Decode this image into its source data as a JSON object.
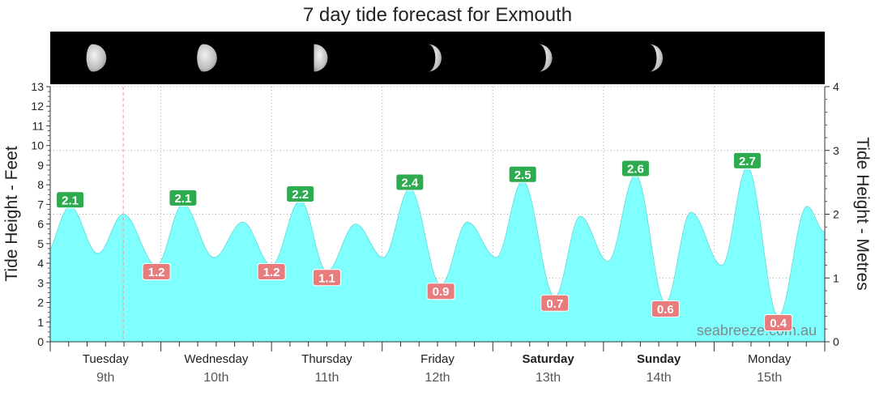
{
  "chart_data": {
    "type": "area",
    "title": "7 day tide forecast for Exmouth",
    "ylabel": "Tide Height - Feet",
    "y2label": "Tide Height - Metres",
    "watermark": "seabreeze.com.au",
    "ylim_feet": [
      0,
      13
    ],
    "ylim_metres": [
      0,
      4
    ],
    "yticks_feet": [
      0,
      1,
      2,
      3,
      4,
      5,
      6,
      7,
      8,
      9,
      10,
      11,
      12,
      13
    ],
    "yticks_metres": [
      0,
      1,
      2,
      3,
      4
    ],
    "grid": true,
    "days": [
      {
        "name": "Tuesday",
        "date": "9th",
        "bold": false
      },
      {
        "name": "Wednesday",
        "date": "10th",
        "bold": false
      },
      {
        "name": "Thursday",
        "date": "11th",
        "bold": false
      },
      {
        "name": "Friday",
        "date": "12th",
        "bold": false
      },
      {
        "name": "Saturday",
        "date": "13th",
        "bold": true
      },
      {
        "name": "Sunday",
        "date": "14th",
        "bold": true
      },
      {
        "name": "Monday",
        "date": "15th",
        "bold": false
      }
    ],
    "moon_phases": [
      "waning-gibbous",
      "waning-gibbous",
      "last-quarter",
      "waning-crescent",
      "waning-crescent",
      "waning-crescent"
    ],
    "x_unit": "day index from Tuesday 9th 00:00",
    "tide_extremes": [
      {
        "t": -0.06,
        "ft": 4.3,
        "type": "low"
      },
      {
        "t": 0.18,
        "ft": 6.9,
        "type": "high"
      },
      {
        "t": 0.43,
        "ft": 4.5,
        "type": "low"
      },
      {
        "t": 0.66,
        "ft": 6.5,
        "type": "high"
      },
      {
        "t": 0.96,
        "ft": 3.9,
        "type": "low"
      },
      {
        "t": 1.2,
        "ft": 7.0,
        "type": "high"
      },
      {
        "t": 1.48,
        "ft": 4.3,
        "type": "low"
      },
      {
        "t": 1.74,
        "ft": 6.1,
        "type": "high"
      },
      {
        "t": 2.0,
        "ft": 3.9,
        "type": "low"
      },
      {
        "t": 2.26,
        "ft": 7.2,
        "type": "high"
      },
      {
        "t": 2.5,
        "ft": 3.6,
        "type": "low"
      },
      {
        "t": 2.76,
        "ft": 6.0,
        "type": "high"
      },
      {
        "t": 3.01,
        "ft": 4.3,
        "type": "low"
      },
      {
        "t": 3.25,
        "ft": 7.8,
        "type": "high"
      },
      {
        "t": 3.53,
        "ft": 2.9,
        "type": "low"
      },
      {
        "t": 3.77,
        "ft": 6.1,
        "type": "high"
      },
      {
        "t": 4.03,
        "ft": 4.3,
        "type": "low"
      },
      {
        "t": 4.27,
        "ft": 8.2,
        "type": "high"
      },
      {
        "t": 4.56,
        "ft": 2.3,
        "type": "low"
      },
      {
        "t": 4.79,
        "ft": 6.4,
        "type": "high"
      },
      {
        "t": 5.04,
        "ft": 4.1,
        "type": "low"
      },
      {
        "t": 5.29,
        "ft": 8.5,
        "type": "high"
      },
      {
        "t": 5.56,
        "ft": 2.0,
        "type": "low"
      },
      {
        "t": 5.79,
        "ft": 6.6,
        "type": "high"
      },
      {
        "t": 6.07,
        "ft": 3.9,
        "type": "low"
      },
      {
        "t": 6.3,
        "ft": 8.9,
        "type": "high"
      },
      {
        "t": 6.58,
        "ft": 1.3,
        "type": "low"
      },
      {
        "t": 6.84,
        "ft": 6.9,
        "type": "high"
      },
      {
        "t": 7.0,
        "ft": 5.6,
        "type": "low"
      }
    ],
    "high_labels": [
      {
        "t": 0.18,
        "ft": 6.9,
        "label": "2.1"
      },
      {
        "t": 1.2,
        "ft": 7.0,
        "label": "2.1"
      },
      {
        "t": 2.26,
        "ft": 7.2,
        "label": "2.2"
      },
      {
        "t": 3.25,
        "ft": 7.8,
        "label": "2.4"
      },
      {
        "t": 4.27,
        "ft": 8.2,
        "label": "2.5"
      },
      {
        "t": 5.29,
        "ft": 8.5,
        "label": "2.6"
      },
      {
        "t": 6.3,
        "ft": 8.9,
        "label": "2.7"
      }
    ],
    "low_labels": [
      {
        "t": 0.96,
        "ft": 3.9,
        "label": "1.2"
      },
      {
        "t": 2.0,
        "ft": 3.9,
        "label": "1.2"
      },
      {
        "t": 2.5,
        "ft": 3.6,
        "label": "1.1"
      },
      {
        "t": 3.53,
        "ft": 2.9,
        "label": "0.9"
      },
      {
        "t": 4.56,
        "ft": 2.3,
        "label": "0.7"
      },
      {
        "t": 5.56,
        "ft": 2.0,
        "label": "0.6"
      },
      {
        "t": 6.58,
        "ft": 1.3,
        "label": "0.4"
      }
    ],
    "now_marker_t": 0.66,
    "colors": {
      "area": "#80ffff",
      "high_label": "#2eaa4f",
      "low_label": "#e87b7b",
      "moon_band": "#000000",
      "now_line": "#e8a090",
      "grid": "#aaaaaa"
    }
  }
}
